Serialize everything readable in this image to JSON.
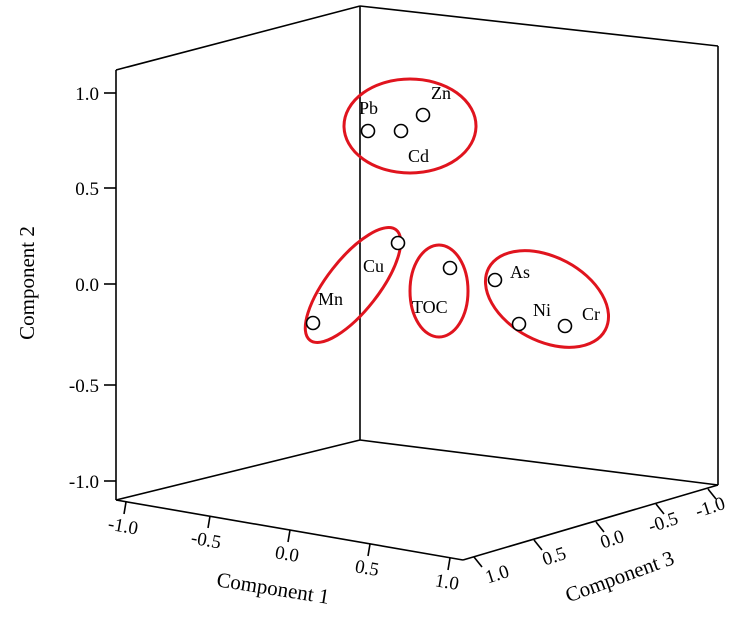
{
  "chart_data": {
    "type": "scatter3d",
    "title": "",
    "xlabel": "Component 1",
    "ylabel": "Component 2",
    "zlabel": "Component 3",
    "xlim": [
      -1.0,
      1.0
    ],
    "ylim": [
      -1.0,
      1.0
    ],
    "zlim": [
      -1.0,
      1.0
    ],
    "x_ticks": [
      "-1.0",
      "-0.5",
      "0.0",
      "0.5",
      "1.0"
    ],
    "y_ticks": [
      "1.0",
      "0.5",
      "0.0",
      "-0.5",
      "-1.0"
    ],
    "z_ticks": [
      "1.0",
      "0.5",
      "0.0",
      "-0.5",
      "-1.0"
    ],
    "points": [
      {
        "label": "Pb",
        "c1": 0.65,
        "c2": 0.79,
        "c3": -0.85
      },
      {
        "label": "Cd",
        "c1": 0.8,
        "c2": 0.78,
        "c3": -0.85
      },
      {
        "label": "Zn",
        "c1": 0.86,
        "c2": 0.86,
        "c3": -0.82
      },
      {
        "label": "Cu",
        "c1": 0.8,
        "c2": 0.19,
        "c3": -0.8
      },
      {
        "label": "Mn",
        "c1": 0.55,
        "c2": -0.2,
        "c3": -0.85
      },
      {
        "label": "TOC",
        "c1": 0.95,
        "c2": 0.1,
        "c3": -0.4
      },
      {
        "label": "As",
        "c1": 0.97,
        "c2": 0.05,
        "c3": -0.05
      },
      {
        "label": "Ni",
        "c1": 0.98,
        "c2": -0.17,
        "c3": 0.05
      },
      {
        "label": "Cr",
        "c1": 0.98,
        "c2": -0.18,
        "c3": 0.35
      }
    ],
    "groups": [
      {
        "name": "Pb-Zn-Cd",
        "members": [
          "Pb",
          "Zn",
          "Cd"
        ]
      },
      {
        "name": "Cu-Mn",
        "members": [
          "Cu",
          "Mn"
        ]
      },
      {
        "name": "TOC",
        "members": [
          "TOC"
        ]
      },
      {
        "name": "As-Ni-Cr",
        "members": [
          "As",
          "Ni",
          "Cr"
        ]
      }
    ],
    "group_outline_color": "#e0141e",
    "axis_color": "#000000"
  }
}
